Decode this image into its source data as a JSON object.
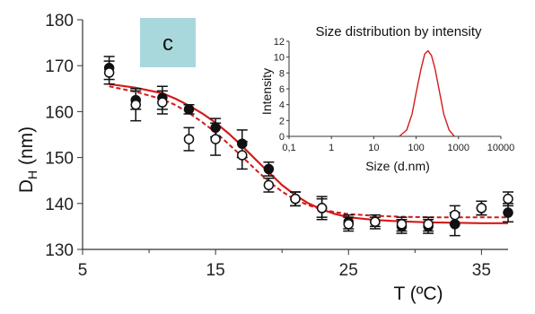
{
  "panel_label": "c",
  "colors": {
    "fit": "#d41a1a",
    "label_box": "#a9d8dc",
    "axis": "#333333",
    "marker": "#111111"
  },
  "chart_data": [
    {
      "type": "scatter",
      "title": "",
      "xlabel": "T (ºC)",
      "ylabel_main": "D",
      "ylabel_sub": "H",
      "ylabel_unit": " (nm)",
      "xlim": [
        5,
        37
      ],
      "ylim": [
        130,
        180
      ],
      "xticks": [
        5,
        15,
        25,
        35
      ],
      "yticks": [
        130,
        140,
        150,
        160,
        170,
        180
      ],
      "grid": false,
      "series": [
        {
          "marker": "filled-circle",
          "points": [
            {
              "x": 7,
              "y": 169.5,
              "err": 2.5
            },
            {
              "x": 9,
              "y": 162.5,
              "err": 2
            },
            {
              "x": 11,
              "y": 163,
              "err": 2.5
            },
            {
              "x": 13,
              "y": 160.5,
              "err": 1
            },
            {
              "x": 15,
              "y": 156.5,
              "err": 2
            },
            {
              "x": 17,
              "y": 153,
              "err": 3
            },
            {
              "x": 19,
              "y": 147.5,
              "err": 1.5
            },
            {
              "x": 21,
              "y": 141,
              "err": 1.5
            },
            {
              "x": 23,
              "y": 139,
              "err": 2.5
            },
            {
              "x": 25,
              "y": 136,
              "err": 1.5
            },
            {
              "x": 27,
              "y": 136,
              "err": 1.5
            },
            {
              "x": 29,
              "y": 135,
              "err": 1.5
            },
            {
              "x": 31,
              "y": 135,
              "err": 1.5
            },
            {
              "x": 33,
              "y": 135.5,
              "err": 2.5
            },
            {
              "x": 35,
              "y": 139,
              "err": 1.5
            },
            {
              "x": 37,
              "y": 138,
              "err": 2
            }
          ]
        },
        {
          "marker": "open-circle",
          "points": [
            {
              "x": 7,
              "y": 168.5,
              "err": 2.5
            },
            {
              "x": 9,
              "y": 161.5,
              "err": 3.5
            },
            {
              "x": 11,
              "y": 162,
              "err": 2.5
            },
            {
              "x": 13,
              "y": 154,
              "err": 2.5
            },
            {
              "x": 15,
              "y": 154,
              "err": 3.5
            },
            {
              "x": 17,
              "y": 150.5,
              "err": 3
            },
            {
              "x": 19,
              "y": 144,
              "err": 1.5
            },
            {
              "x": 21,
              "y": 141,
              "err": 1.5
            },
            {
              "x": 23,
              "y": 139,
              "err": 2
            },
            {
              "x": 25,
              "y": 135.5,
              "err": 1.5
            },
            {
              "x": 27,
              "y": 136,
              "err": 1
            },
            {
              "x": 29,
              "y": 135.5,
              "err": 1.5
            },
            {
              "x": 31,
              "y": 135.5,
              "err": 1.5
            },
            {
              "x": 33,
              "y": 137.5,
              "err": 2
            },
            {
              "x": 35,
              "y": 139,
              "err": 1.5
            },
            {
              "x": 37,
              "y": 141,
              "err": 1.5
            }
          ]
        }
      ],
      "fit_lines": [
        {
          "style": "solid",
          "x": [
            7,
            9,
            11,
            12,
            13,
            14,
            15,
            16,
            17,
            18,
            19,
            20,
            21,
            22,
            23,
            24,
            25,
            27,
            29,
            31,
            33,
            35,
            37
          ],
          "y": [
            166,
            165.2,
            164,
            162.8,
            161.3,
            159.6,
            157.6,
            155.2,
            152.5,
            149.6,
            146.8,
            144,
            141.8,
            140,
            138.7,
            137.7,
            137,
            136.4,
            136.1,
            135.9,
            135.8,
            135.7,
            135.7
          ]
        },
        {
          "style": "dashed",
          "x": [
            7,
            9,
            11,
            12,
            13,
            14,
            15,
            16,
            17,
            18,
            19,
            20,
            21,
            22,
            23,
            24,
            25,
            27,
            29,
            31,
            33,
            35,
            37
          ],
          "y": [
            165.5,
            164.3,
            162.7,
            161.4,
            159.7,
            157.7,
            155.5,
            152.9,
            150.2,
            147.4,
            144.8,
            142.6,
            140.8,
            139.6,
            138.7,
            138.1,
            137.7,
            137.3,
            137.1,
            137,
            137,
            137,
            137
          ]
        }
      ]
    },
    {
      "type": "line",
      "title": "Size distribution by intensity",
      "xlabel": "Size (d.nm)",
      "ylabel": "Intensity",
      "xscale": "log",
      "xlim": [
        0.1,
        10000
      ],
      "ylim": [
        0,
        12
      ],
      "xticks": [
        0.1,
        1,
        10,
        100,
        1000,
        10000
      ],
      "xtick_labels": [
        "0,1",
        "1",
        "10",
        "100",
        "1000",
        "10000"
      ],
      "yticks": [
        0,
        2,
        4,
        6,
        8,
        10,
        12
      ],
      "grid": false,
      "series": [
        {
          "x": [
            40,
            60,
            80,
            100,
            130,
            160,
            190,
            230,
            280,
            350,
            450,
            600,
            800
          ],
          "y": [
            0,
            0.8,
            2.8,
            5.5,
            8.5,
            10.4,
            10.8,
            10.2,
            8.5,
            5.8,
            2.8,
            0.8,
            0
          ]
        }
      ]
    }
  ]
}
